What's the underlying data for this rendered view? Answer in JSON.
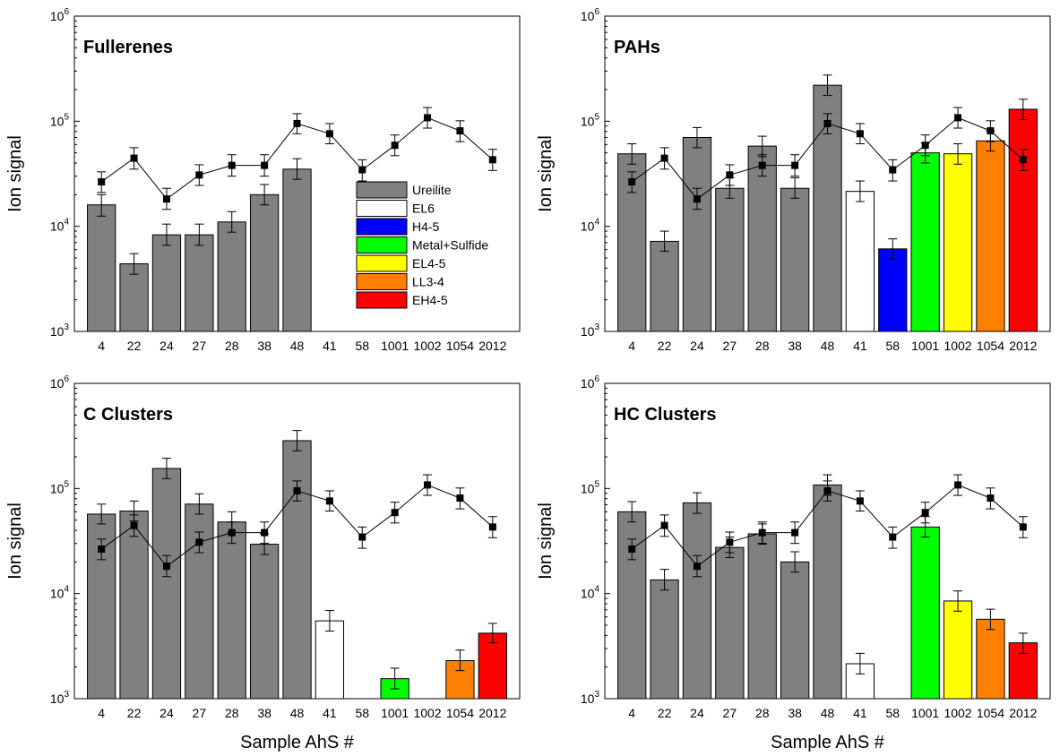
{
  "figure": {
    "shared_xlabel": "Sample AhS #",
    "shared_ylabel": "Ion signal"
  },
  "legend": {
    "items": [
      {
        "label": "Ureilite",
        "color": "#808080"
      },
      {
        "label": "EL6",
        "color": "#ffffff"
      },
      {
        "label": "H4-5",
        "color": "#0000ff"
      },
      {
        "label": "Metal+Sulfide",
        "color": "#00ff00"
      },
      {
        "label": "EL4-5",
        "color": "#ffff00"
      },
      {
        "label": "LL3-4",
        "color": "#ff8000"
      },
      {
        "label": "EH4-5",
        "color": "#ff0000"
      }
    ]
  },
  "chart_data": [
    {
      "type": "bar",
      "title": "Fullerenes",
      "xlabel": "",
      "ylabel": "Ion signal",
      "yscale": "log",
      "ylim": [
        1000,
        1000000
      ],
      "yticks": [
        "10^3",
        "10^4",
        "10^5",
        "10^6"
      ],
      "categories": [
        "4",
        "22",
        "24",
        "27",
        "28",
        "38",
        "48",
        "41",
        "58",
        "1001",
        "1002",
        "1054",
        "2012"
      ],
      "bar_values": [
        16000,
        4400,
        8300,
        8300,
        11000,
        20000,
        35000,
        null,
        null,
        null,
        null,
        null,
        null
      ],
      "bar_error_upper": [
        20000,
        5500,
        10500,
        10500,
        13800,
        25000,
        44000,
        null,
        null,
        null,
        null,
        null,
        null
      ],
      "bar_error_lower": [
        12500,
        3500,
        6600,
        6600,
        8800,
        16000,
        28000,
        null,
        null,
        null,
        null,
        null,
        null
      ],
      "bar_colors": [
        "#808080",
        "#808080",
        "#808080",
        "#808080",
        "#808080",
        "#808080",
        "#808080",
        "#ffffff",
        "#0000ff",
        "#00ff00",
        "#ffff00",
        "#ff8000",
        "#ff0000"
      ],
      "line_values": [
        26500,
        44500,
        18200,
        30800,
        38000,
        38000,
        95000,
        76000,
        34500,
        59000,
        108000,
        81000,
        43000
      ],
      "line_error_upper": [
        33000,
        56000,
        23000,
        38500,
        48000,
        48000,
        118000,
        95000,
        43000,
        74000,
        135000,
        101000,
        54000
      ],
      "line_error_lower": [
        21000,
        35000,
        14500,
        24500,
        30000,
        30000,
        76000,
        61000,
        27000,
        47000,
        86000,
        64000,
        34000
      ],
      "legend": "inside, lower-right"
    },
    {
      "type": "bar",
      "title": "PAHs",
      "xlabel": "",
      "ylabel": "Ion signal",
      "yscale": "log",
      "ylim": [
        1000,
        1000000
      ],
      "yticks": [
        "10^3",
        "10^4",
        "10^5",
        "10^6"
      ],
      "categories": [
        "4",
        "22",
        "24",
        "27",
        "28",
        "38",
        "48",
        "41",
        "58",
        "1001",
        "1002",
        "1054",
        "2012"
      ],
      "bar_values": [
        49000,
        7200,
        70000,
        23000,
        58000,
        23000,
        220000,
        21500,
        6100,
        50000,
        49000,
        65000,
        130000
      ],
      "bar_error_upper": [
        61000,
        9000,
        87000,
        29000,
        72000,
        29000,
        275000,
        27000,
        7600,
        62000,
        61000,
        81000,
        162000
      ],
      "bar_error_lower": [
        39000,
        5800,
        56000,
        18500,
        46000,
        18500,
        176000,
        17200,
        4900,
        40000,
        39000,
        52000,
        104000
      ],
      "bar_colors": [
        "#808080",
        "#808080",
        "#808080",
        "#808080",
        "#808080",
        "#808080",
        "#808080",
        "#ffffff",
        "#0000ff",
        "#00ff00",
        "#ffff00",
        "#ff8000",
        "#ff0000"
      ],
      "line_values": [
        26500,
        44500,
        18200,
        30800,
        38000,
        38000,
        95000,
        76000,
        34500,
        59000,
        108000,
        81000,
        43000
      ],
      "line_error_upper": [
        33000,
        56000,
        23000,
        38500,
        48000,
        48000,
        118000,
        95000,
        43000,
        74000,
        135000,
        101000,
        54000
      ],
      "line_error_lower": [
        21000,
        35000,
        14500,
        24500,
        30000,
        30000,
        76000,
        61000,
        27000,
        47000,
        86000,
        64000,
        34000
      ]
    },
    {
      "type": "bar",
      "title": "C Clusters",
      "xlabel": "Sample AhS #",
      "ylabel": "Ion signal",
      "yscale": "log",
      "ylim": [
        1000,
        1000000
      ],
      "yticks": [
        "10^3",
        "10^4",
        "10^5",
        "10^6"
      ],
      "categories": [
        "4",
        "22",
        "24",
        "27",
        "28",
        "38",
        "48",
        "41",
        "58",
        "1001",
        "1002",
        "1054",
        "2012"
      ],
      "bar_values": [
        57000,
        61000,
        155000,
        71000,
        48000,
        29500,
        285000,
        5500,
        null,
        1550,
        null,
        2300,
        4200
      ],
      "bar_error_upper": [
        71000,
        76000,
        194000,
        89000,
        60000,
        37000,
        356000,
        6900,
        null,
        1950,
        null,
        2900,
        5200
      ],
      "bar_error_lower": [
        46000,
        49000,
        124000,
        57000,
        38000,
        23500,
        228000,
        4400,
        null,
        1240,
        null,
        1850,
        3400
      ],
      "bar_colors": [
        "#808080",
        "#808080",
        "#808080",
        "#808080",
        "#808080",
        "#808080",
        "#808080",
        "#ffffff",
        "#0000ff",
        "#00ff00",
        "#ffff00",
        "#ff8000",
        "#ff0000"
      ],
      "line_values": [
        26500,
        44500,
        18200,
        30800,
        38000,
        38000,
        95000,
        76000,
        34500,
        59000,
        108000,
        81000,
        43000
      ],
      "line_error_upper": [
        33000,
        56000,
        23000,
        38500,
        48000,
        48000,
        118000,
        95000,
        43000,
        74000,
        135000,
        101000,
        54000
      ],
      "line_error_lower": [
        21000,
        35000,
        14500,
        24500,
        30000,
        30000,
        76000,
        61000,
        27000,
        47000,
        86000,
        64000,
        34000
      ]
    },
    {
      "type": "bar",
      "title": "HC Clusters",
      "xlabel": "Sample AhS #",
      "ylabel": "Ion signal",
      "yscale": "log",
      "ylim": [
        1000,
        1000000
      ],
      "yticks": [
        "10^3",
        "10^4",
        "10^5",
        "10^6"
      ],
      "categories": [
        "4",
        "22",
        "24",
        "27",
        "28",
        "38",
        "48",
        "41",
        "58",
        "1001",
        "1002",
        "1054",
        "2012"
      ],
      "bar_values": [
        60000,
        13500,
        73000,
        27500,
        37000,
        20000,
        108000,
        2150,
        null,
        43000,
        8500,
        5700,
        3400
      ],
      "bar_error_upper": [
        75000,
        17000,
        91000,
        34500,
        46000,
        25000,
        135000,
        2700,
        null,
        54000,
        10600,
        7100,
        4200
      ],
      "bar_error_lower": [
        48000,
        10800,
        58000,
        22000,
        29500,
        16000,
        86000,
        1720,
        null,
        34500,
        6800,
        4550,
        2700
      ],
      "bar_colors": [
        "#808080",
        "#808080",
        "#808080",
        "#808080",
        "#808080",
        "#808080",
        "#808080",
        "#ffffff",
        "#0000ff",
        "#00ff00",
        "#ffff00",
        "#ff8000",
        "#ff0000"
      ],
      "line_values": [
        26500,
        44500,
        18200,
        30800,
        38000,
        38000,
        95000,
        76000,
        34500,
        59000,
        108000,
        81000,
        43000
      ],
      "line_error_upper": [
        33000,
        56000,
        23000,
        38500,
        48000,
        48000,
        118000,
        95000,
        43000,
        74000,
        135000,
        101000,
        54000
      ],
      "line_error_lower": [
        21000,
        35000,
        14500,
        24500,
        30000,
        30000,
        76000,
        61000,
        27000,
        47000,
        86000,
        64000,
        34000
      ]
    }
  ]
}
